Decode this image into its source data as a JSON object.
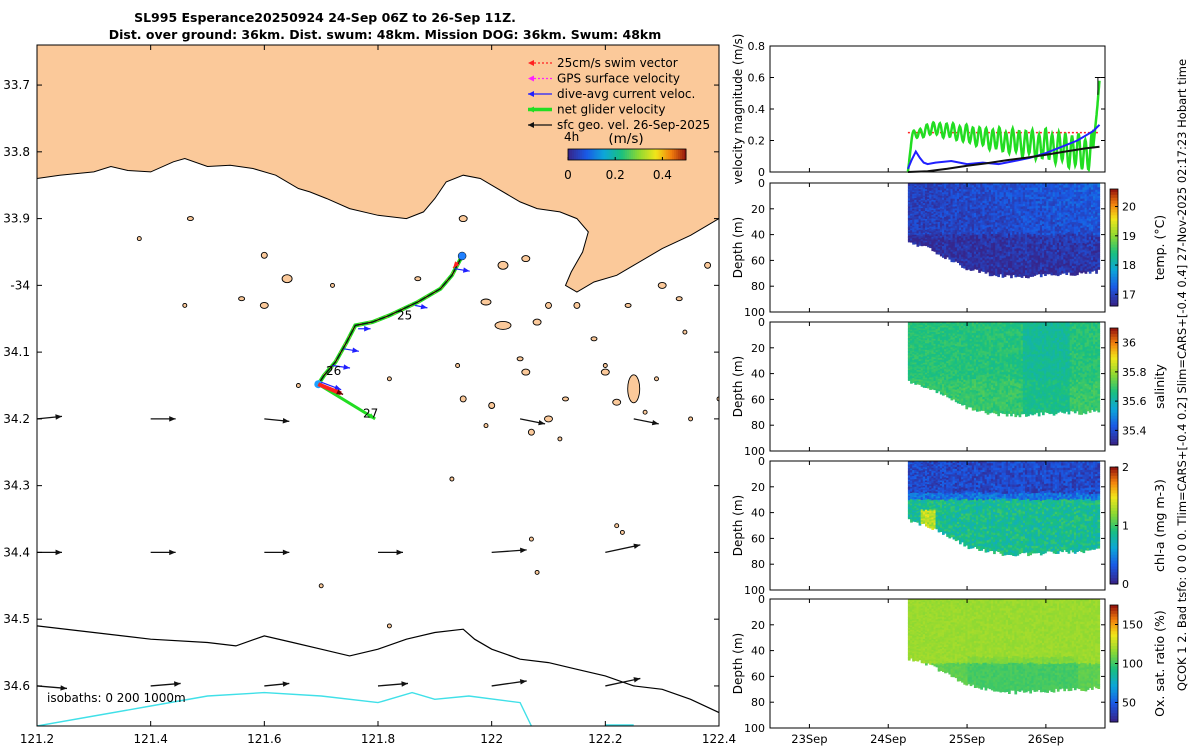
{
  "title": {
    "line1": "SL995 Esperance20250924 24-Sep 06Z to 26-Sep 11Z.",
    "line2": "Dist. over ground: 36km. Dist. swum: 48km. Mission DOG: 36km. Swum: 48km"
  },
  "side_text": "QCOK 1  2. Bad tsfo: 0  0  0  0. Tlim=CARS+[-0.4 0.2] Slim=CARS+[-0.4 0.4] 27-Nov-2025 02:17:23 Hobart time",
  "colors": {
    "land": "#fbc99a",
    "coast": "#000000",
    "track": "#111111",
    "swim": "#ff2020",
    "gps": "#ff20ff",
    "dive_avg": "#2020ff",
    "net": "#22dd22",
    "sfc_geo": "#111111",
    "iso1000": "#40e0e8"
  },
  "chart_data": [
    {
      "type": "map",
      "name": "glider-track-map",
      "xlim": [
        121.2,
        122.4
      ],
      "ylim": [
        -34.66,
        -33.64
      ],
      "xticks": [
        121.2,
        121.4,
        121.6,
        121.8,
        122,
        122.2,
        122.4
      ],
      "xtick_labels": [
        "121.2",
        "121.4",
        "121.6",
        "121.8",
        "122",
        "122.2",
        "122.4"
      ],
      "yticks": [
        -33.7,
        -33.8,
        -33.9,
        -34,
        -34.1,
        -34.2,
        -34.3,
        -34.4,
        -34.5,
        -34.6
      ],
      "ytick_labels": [
        "33.7",
        "33.8",
        "33.9",
        "-34",
        "34.1",
        "34.2",
        "34.3",
        "34.4",
        "34.5",
        "34.6"
      ],
      "legend": {
        "placement": "top-right",
        "entries": [
          {
            "label": "25cm/s swim vector",
            "color": "#ff2020",
            "style": "dotted"
          },
          {
            "label": "GPS surface velocity",
            "color": "#ff20ff",
            "style": "dotted"
          },
          {
            "label": "dive-avg current veloc.",
            "color": "#2020ff",
            "style": "solid"
          },
          {
            "label": "net glider velocity",
            "color": "#22dd22",
            "style": "thick"
          },
          {
            "label": "sfc geo. vel. 26-Sep-2025",
            "color": "#111111",
            "style": "solid"
          }
        ],
        "time_label": "4h",
        "colorbar_label": "(m/s)",
        "colorbar_range": [
          0,
          0.5
        ],
        "colorbar_ticks": [
          0,
          0.2,
          0.4
        ],
        "colorbar_tick_labels": [
          "0",
          "0.2",
          "0.4"
        ]
      },
      "isobath_label": "isobaths: 0   200  1000m",
      "track": {
        "points": [
          [
            121.948,
            -33.956
          ],
          [
            121.93,
            -33.985
          ],
          [
            121.91,
            -34.005
          ],
          [
            121.87,
            -34.025
          ],
          [
            121.82,
            -34.045
          ],
          [
            121.79,
            -34.055
          ],
          [
            121.76,
            -34.06
          ],
          [
            121.745,
            -34.085
          ],
          [
            121.725,
            -34.115
          ],
          [
            121.705,
            -34.135
          ],
          [
            121.695,
            -34.148
          ]
        ],
        "day_labels": [
          {
            "text": "25",
            "lon": 121.83,
            "lat": -34.045
          },
          {
            "text": "26",
            "lon": 121.705,
            "lat": -34.128
          },
          {
            "text": "27",
            "lon": 121.77,
            "lat": -34.192
          }
        ],
        "net_vector_end": [
          121.795,
          -34.2
        ],
        "swim_vector_end": [
          121.735,
          -34.162
        ]
      },
      "dive_avg_vectors": [
        {
          "lon": 121.935,
          "lat": -33.975,
          "u": 0.06,
          "v": -0.01
        },
        {
          "lon": 121.865,
          "lat": -34.03,
          "u": 0.05,
          "v": -0.01
        },
        {
          "lon": 121.765,
          "lat": -34.065,
          "u": 0.05,
          "v": 0.0
        },
        {
          "lon": 121.74,
          "lat": -34.095,
          "u": 0.06,
          "v": -0.01
        },
        {
          "lon": 121.72,
          "lat": -34.12,
          "u": 0.07,
          "v": -0.01
        },
        {
          "lon": 121.7,
          "lat": -34.145,
          "u": 0.08,
          "v": -0.03
        }
      ],
      "sfc_geo_vectors": [
        {
          "lon": 121.2,
          "lat": -34.2,
          "u": 0.05,
          "v": 0.005
        },
        {
          "lon": 121.4,
          "lat": -34.2,
          "u": 0.05,
          "v": 0.0
        },
        {
          "lon": 121.6,
          "lat": -34.2,
          "u": 0.05,
          "v": -0.005
        },
        {
          "lon": 122.05,
          "lat": -34.2,
          "u": 0.05,
          "v": -0.01
        },
        {
          "lon": 122.25,
          "lat": -34.2,
          "u": 0.05,
          "v": -0.01
        },
        {
          "lon": 121.2,
          "lat": -34.4,
          "u": 0.05,
          "v": 0.0
        },
        {
          "lon": 121.4,
          "lat": -34.4,
          "u": 0.05,
          "v": 0.0
        },
        {
          "lon": 121.6,
          "lat": -34.4,
          "u": 0.05,
          "v": 0.0
        },
        {
          "lon": 121.8,
          "lat": -34.4,
          "u": 0.05,
          "v": 0.0
        },
        {
          "lon": 122.0,
          "lat": -34.4,
          "u": 0.07,
          "v": 0.005
        },
        {
          "lon": 122.2,
          "lat": -34.4,
          "u": 0.07,
          "v": 0.015
        },
        {
          "lon": 121.2,
          "lat": -34.6,
          "u": 0.06,
          "v": -0.005
        },
        {
          "lon": 121.4,
          "lat": -34.6,
          "u": 0.06,
          "v": 0.005
        },
        {
          "lon": 121.6,
          "lat": -34.6,
          "u": 0.05,
          "v": 0.005
        },
        {
          "lon": 121.8,
          "lat": -34.6,
          "u": 0.06,
          "v": 0.005
        },
        {
          "lon": 122.0,
          "lat": -34.6,
          "u": 0.07,
          "v": 0.01
        },
        {
          "lon": 122.2,
          "lat": -34.6,
          "u": 0.07,
          "v": 0.015
        }
      ],
      "coastline": [
        [
          121.2,
          -33.84
        ],
        [
          121.24,
          -33.835
        ],
        [
          121.3,
          -33.83
        ],
        [
          121.33,
          -33.822
        ],
        [
          121.36,
          -33.828
        ],
        [
          121.4,
          -33.83
        ],
        [
          121.44,
          -33.815
        ],
        [
          121.46,
          -33.81
        ],
        [
          121.5,
          -33.822
        ],
        [
          121.54,
          -33.82
        ],
        [
          121.58,
          -33.825
        ],
        [
          121.62,
          -33.835
        ],
        [
          121.66,
          -33.855
        ],
        [
          121.68,
          -33.86
        ],
        [
          121.71,
          -33.87
        ],
        [
          121.75,
          -33.885
        ],
        [
          121.8,
          -33.895
        ],
        [
          121.85,
          -33.9
        ],
        [
          121.88,
          -33.89
        ],
        [
          121.9,
          -33.87
        ],
        [
          121.92,
          -33.845
        ],
        [
          121.95,
          -33.835
        ],
        [
          121.98,
          -33.84
        ],
        [
          122.0,
          -33.85
        ],
        [
          122.05,
          -33.875
        ],
        [
          122.08,
          -33.885
        ],
        [
          122.12,
          -33.89
        ],
        [
          122.15,
          -33.9
        ],
        [
          122.17,
          -33.92
        ],
        [
          122.16,
          -33.95
        ],
        [
          122.14,
          -33.98
        ],
        [
          122.13,
          -34.0
        ],
        [
          122.15,
          -34.01
        ],
        [
          122.18,
          -33.995
        ],
        [
          122.22,
          -33.985
        ],
        [
          122.25,
          -33.97
        ],
        [
          122.3,
          -33.945
        ],
        [
          122.35,
          -33.925
        ],
        [
          122.4,
          -33.9
        ]
      ],
      "isobath_200": [
        [
          121.2,
          -34.51
        ],
        [
          121.3,
          -34.52
        ],
        [
          121.4,
          -34.53
        ],
        [
          121.5,
          -34.535
        ],
        [
          121.55,
          -34.54
        ],
        [
          121.6,
          -34.525
        ],
        [
          121.65,
          -34.535
        ],
        [
          121.7,
          -34.545
        ],
        [
          121.75,
          -34.555
        ],
        [
          121.8,
          -34.545
        ],
        [
          121.85,
          -34.53
        ],
        [
          121.9,
          -34.52
        ],
        [
          121.95,
          -34.515
        ],
        [
          121.97,
          -34.53
        ],
        [
          122.0,
          -34.545
        ],
        [
          122.05,
          -34.56
        ],
        [
          122.1,
          -34.565
        ],
        [
          122.15,
          -34.575
        ],
        [
          122.2,
          -34.585
        ],
        [
          122.25,
          -34.6
        ],
        [
          122.3,
          -34.605
        ],
        [
          122.35,
          -34.62
        ],
        [
          122.4,
          -34.64
        ]
      ],
      "isobath_1000": [
        [
          121.2,
          -34.66
        ],
        [
          121.3,
          -34.645
        ],
        [
          121.4,
          -34.63
        ],
        [
          121.5,
          -34.615
        ],
        [
          121.6,
          -34.61
        ],
        [
          121.7,
          -34.615
        ],
        [
          121.8,
          -34.625
        ],
        [
          121.86,
          -34.61
        ],
        [
          121.9,
          -34.62
        ],
        [
          121.96,
          -34.615
        ],
        [
          122.05,
          -34.625
        ],
        [
          122.07,
          -34.66
        ]
      ]
    },
    {
      "type": "line",
      "name": "velocity-magnitude",
      "ylabel": "velocity magnitude (m/s)",
      "ylim": [
        0,
        0.8
      ],
      "yticks": [
        0,
        0.2,
        0.4,
        0.6,
        0.8
      ],
      "ytick_labels": [
        "0",
        "0.2",
        "0.4",
        "0.6",
        "0.8"
      ],
      "xlim": [
        22.5,
        26.75
      ],
      "series": [
        {
          "name": "25cm/s swim",
          "color": "#ff2020",
          "style": "dotted",
          "x": [
            24.25,
            26.68
          ],
          "y": [
            0.25,
            0.25
          ]
        },
        {
          "name": "net glider velocity",
          "color": "#22dd22",
          "x": [
            24.25,
            24.3,
            24.35,
            24.4,
            24.5,
            24.6,
            24.7,
            24.8,
            24.9,
            25.0,
            25.1,
            25.2,
            25.3,
            25.4,
            25.5,
            25.6,
            25.7,
            25.8,
            25.9,
            26.0,
            26.1,
            26.2,
            26.3,
            26.4,
            26.5,
            26.6,
            26.65,
            26.68
          ],
          "y": [
            0.0,
            0.22,
            0.25,
            0.24,
            0.27,
            0.28,
            0.26,
            0.27,
            0.24,
            0.25,
            0.22,
            0.23,
            0.2,
            0.22,
            0.18,
            0.21,
            0.17,
            0.2,
            0.15,
            0.19,
            0.14,
            0.17,
            0.12,
            0.15,
            0.1,
            0.15,
            0.4,
            0.58
          ]
        },
        {
          "name": "dive-avg current",
          "color": "#2020ff",
          "x": [
            24.25,
            24.3,
            24.35,
            24.4,
            24.45,
            24.5,
            24.6,
            24.8,
            25.0,
            25.2,
            25.4,
            25.6,
            25.8,
            26.0,
            26.2,
            26.4,
            26.6,
            26.68
          ],
          "y": [
            0.02,
            0.08,
            0.13,
            0.09,
            0.06,
            0.05,
            0.06,
            0.07,
            0.05,
            0.06,
            0.05,
            0.07,
            0.09,
            0.12,
            0.16,
            0.2,
            0.26,
            0.3
          ]
        },
        {
          "name": "sfc geo. vel.",
          "color": "#111111",
          "x": [
            24.25,
            24.5,
            24.75,
            25.0,
            25.25,
            25.5,
            25.75,
            26.0,
            26.25,
            26.5,
            26.68
          ],
          "y": [
            0.0,
            0.005,
            0.02,
            0.04,
            0.055,
            0.075,
            0.09,
            0.11,
            0.13,
            0.15,
            0.16
          ]
        }
      ]
    },
    {
      "type": "heatmap",
      "name": "temperature-section",
      "ylabel": "Depth (m)",
      "clabel": "temp. (°C)",
      "crange": [
        16.6,
        20.6
      ],
      "cticks": [
        17,
        18,
        19,
        20
      ],
      "ctick_labels": [
        "17",
        "18",
        "19",
        "20"
      ],
      "ylim": [
        0,
        100
      ],
      "yticks": [
        0,
        20,
        40,
        60,
        80,
        100
      ],
      "ytick_labels": [
        "0",
        "20",
        "40",
        "60",
        "80",
        "100"
      ],
      "fill_value": 17.2,
      "noise": 0.25
    },
    {
      "type": "heatmap",
      "name": "salinity-section",
      "ylabel": "Depth (m)",
      "clabel": "salinity",
      "crange": [
        35.3,
        36.1
      ],
      "cticks": [
        35.4,
        35.6,
        35.8,
        36
      ],
      "ctick_labels": [
        "35.4",
        "35.6",
        "35.8",
        "36"
      ],
      "ylim": [
        0,
        100
      ],
      "yticks": [
        0,
        20,
        40,
        60,
        80,
        100
      ],
      "ytick_labels": [
        "0",
        "20",
        "40",
        "60",
        "80",
        "100"
      ],
      "fill_value": 35.67,
      "noise": 0.03
    },
    {
      "type": "heatmap",
      "name": "chla-section",
      "ylabel": "Depth (m)",
      "clabel": "chl-a  (mg m-3)",
      "crange": [
        0,
        2
      ],
      "cticks": [
        0,
        1,
        2
      ],
      "ctick_labels": [
        "0",
        "1",
        "2"
      ],
      "ylim": [
        0,
        100
      ],
      "yticks": [
        0,
        20,
        40,
        60,
        80,
        100
      ],
      "ytick_labels": [
        "0",
        "20",
        "40",
        "60",
        "80",
        "100"
      ],
      "fill_value": 0.4,
      "noise": 0.15
    },
    {
      "type": "heatmap",
      "name": "oxygen-section",
      "ylabel": "Depth (m)",
      "clabel": "Ox. sat. ratio (%)",
      "crange": [
        25,
        175
      ],
      "cticks": [
        50,
        100,
        150
      ],
      "ctick_labels": [
        "50",
        "100",
        "150"
      ],
      "ylim": [
        0,
        100
      ],
      "yticks": [
        0,
        20,
        40,
        60,
        80,
        100
      ],
      "ytick_labels": [
        "0",
        "20",
        "40",
        "60",
        "80",
        "100"
      ],
      "fill_value": 118,
      "noise": 3
    }
  ],
  "time_axis": {
    "xlim": [
      22.5,
      26.75
    ],
    "ticks": [
      23,
      24,
      25,
      26
    ],
    "labels": [
      "23Sep",
      "24Sep",
      "25Sep",
      "26Sep"
    ],
    "data_start": 24.25,
    "data_end": 26.68,
    "surface_bottom_depth": 46,
    "bottom_profile": [
      [
        24.25,
        46
      ],
      [
        24.5,
        50
      ],
      [
        24.75,
        58
      ],
      [
        25.0,
        66
      ],
      [
        25.25,
        70
      ],
      [
        25.5,
        72
      ],
      [
        25.75,
        72
      ],
      [
        26.0,
        71
      ],
      [
        26.25,
        70
      ],
      [
        26.5,
        70
      ],
      [
        26.68,
        68
      ]
    ]
  }
}
